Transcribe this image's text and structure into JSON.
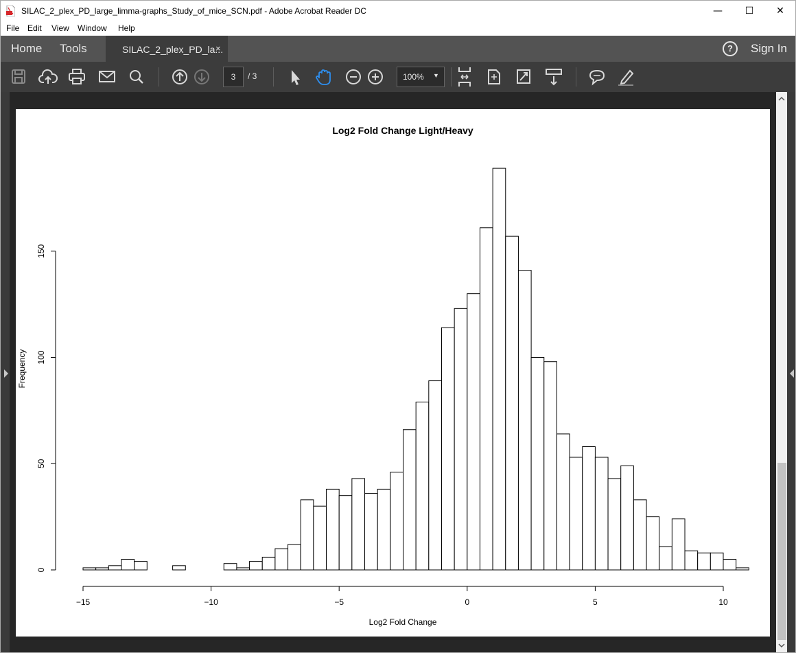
{
  "window": {
    "title": "SILAC_2_plex_PD_large_limma-graphs_Study_of_mice_SCN.pdf - Adobe Acrobat Reader DC",
    "minimize": "—",
    "maximize": "☐",
    "close": "✕"
  },
  "menu": [
    "File",
    "Edit",
    "View",
    "Window",
    "Help"
  ],
  "tabs": {
    "home": "Home",
    "tools": "Tools",
    "document": "SILAC_2_plex_PD_la...",
    "close": "×",
    "help": "?",
    "sign_in": "Sign In"
  },
  "toolbar": {
    "page_current": "3",
    "page_total": "/  3",
    "zoom": "100%",
    "icons": [
      "save-icon",
      "cloud-upload-icon",
      "print-icon",
      "email-icon",
      "search-icon",
      "page-up-icon",
      "page-down-icon",
      "select-cursor-icon",
      "hand-icon",
      "zoom-out-icon",
      "zoom-in-icon",
      "fit-page-icon",
      "rotate-icon",
      "full-screen-icon",
      "scroll-mode-icon",
      "comment-icon",
      "highlight-icon"
    ]
  },
  "colors": {
    "tab_bar": "#535353",
    "toolbar": "#3c3c3c",
    "viewer_bg": "#262626",
    "hand_active": "#2d8ff0"
  },
  "chart_data": {
    "type": "bar",
    "title": "Log2 Fold Change Light/Heavy",
    "xlabel": "Log2 Fold Change",
    "ylabel": "Frequency",
    "bin_width": 0.5,
    "x_start": -15,
    "xlim": [
      -15,
      10
    ],
    "ylim": [
      0,
      190
    ],
    "x_ticks": [
      -15,
      -10,
      -5,
      0,
      5,
      10
    ],
    "x_tick_labels": [
      "−15",
      "−10",
      "−5",
      "0",
      "5",
      "10"
    ],
    "y_ticks": [
      0,
      50,
      100,
      150
    ],
    "values": [
      1,
      1,
      2,
      5,
      4,
      0,
      0,
      2,
      0,
      0,
      0,
      3,
      1,
      4,
      6,
      10,
      12,
      33,
      30,
      38,
      35,
      43,
      36,
      38,
      46,
      66,
      79,
      89,
      114,
      123,
      130,
      161,
      189,
      157,
      141,
      100,
      98,
      64,
      53,
      58,
      53,
      43,
      49,
      33,
      25,
      11,
      24,
      9,
      8,
      8,
      5,
      1
    ],
    "legend": "none",
    "grid": false
  }
}
